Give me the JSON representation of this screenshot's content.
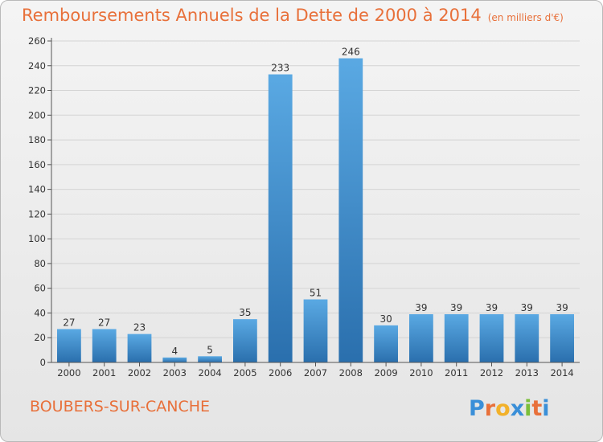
{
  "colors": {
    "title": "#e8703a",
    "bar_light": "#5aa9e3",
    "bar_dark": "#2a6fad",
    "axis": "#555555",
    "grid": "#d4d4d4"
  },
  "commune": "BOUBERS-SUR-CANCHE",
  "brand": "Proxiti",
  "chart_data": {
    "type": "bar",
    "title": "Remboursements Annuels de la Dette de 2000 à 2014",
    "subtitle": "(en milliers d'€)",
    "categories": [
      "2000",
      "2001",
      "2002",
      "2003",
      "2004",
      "2005",
      "2006",
      "2007",
      "2008",
      "2009",
      "2010",
      "2011",
      "2012",
      "2013",
      "2014"
    ],
    "values": [
      27,
      27,
      23,
      4,
      5,
      35,
      233,
      51,
      246,
      30,
      39,
      39,
      39,
      39,
      39
    ],
    "ylim": [
      0,
      260
    ],
    "yticks": [
      0,
      20,
      40,
      60,
      80,
      100,
      120,
      140,
      160,
      180,
      200,
      220,
      240,
      260
    ],
    "grid": true,
    "legend": "none"
  }
}
